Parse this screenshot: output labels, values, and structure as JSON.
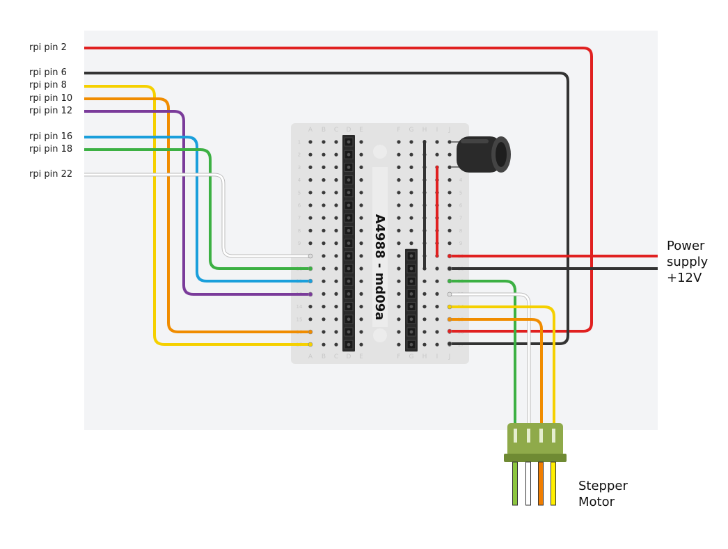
{
  "pin_labels": [
    {
      "text": "rpi pin 2",
      "color": "#e02020"
    },
    {
      "text": "rpi pin 6",
      "color": "#333333"
    },
    {
      "text": "rpi pin 8",
      "color": "#f5d000"
    },
    {
      "text": "rpi pin 10",
      "color": "#f08c00"
    },
    {
      "text": "rpi pin 12",
      "color": "#7a3b9a"
    },
    {
      "text": "rpi pin 16",
      "color": "#1a9fdb"
    },
    {
      "text": "rpi pin 18",
      "color": "#3cb043"
    },
    {
      "text": "rpi pin 22",
      "color": "#eeeeee"
    }
  ],
  "board": {
    "title": "A4988 - md09a",
    "columns_left": [
      "A",
      "B",
      "C",
      "D",
      "E"
    ],
    "columns_right": [
      "F",
      "G",
      "H",
      "I",
      "J"
    ],
    "rows": [
      "1",
      "2",
      "3",
      "4",
      "5",
      "6",
      "7",
      "8",
      "9",
      "10",
      "11",
      "12",
      "13",
      "14",
      "15",
      "16",
      "17"
    ]
  },
  "power": {
    "line1": "Power",
    "line2": "supply",
    "line3": "+12V",
    "positive_color": "#e02020",
    "negative_color": "#333333"
  },
  "motor": {
    "line1": "Stepper",
    "line2": "Motor",
    "connector_color": "#8faa4a",
    "wire_colors": [
      "#8dc63f",
      "#ffffff",
      "#f07d00",
      "#ffee00"
    ]
  },
  "capacitor": {
    "body_color": "#222222"
  },
  "colors": {
    "background_panel": "#f3f4f6",
    "breadboard": "#e3e3e3",
    "header": "#2a2a2a"
  }
}
